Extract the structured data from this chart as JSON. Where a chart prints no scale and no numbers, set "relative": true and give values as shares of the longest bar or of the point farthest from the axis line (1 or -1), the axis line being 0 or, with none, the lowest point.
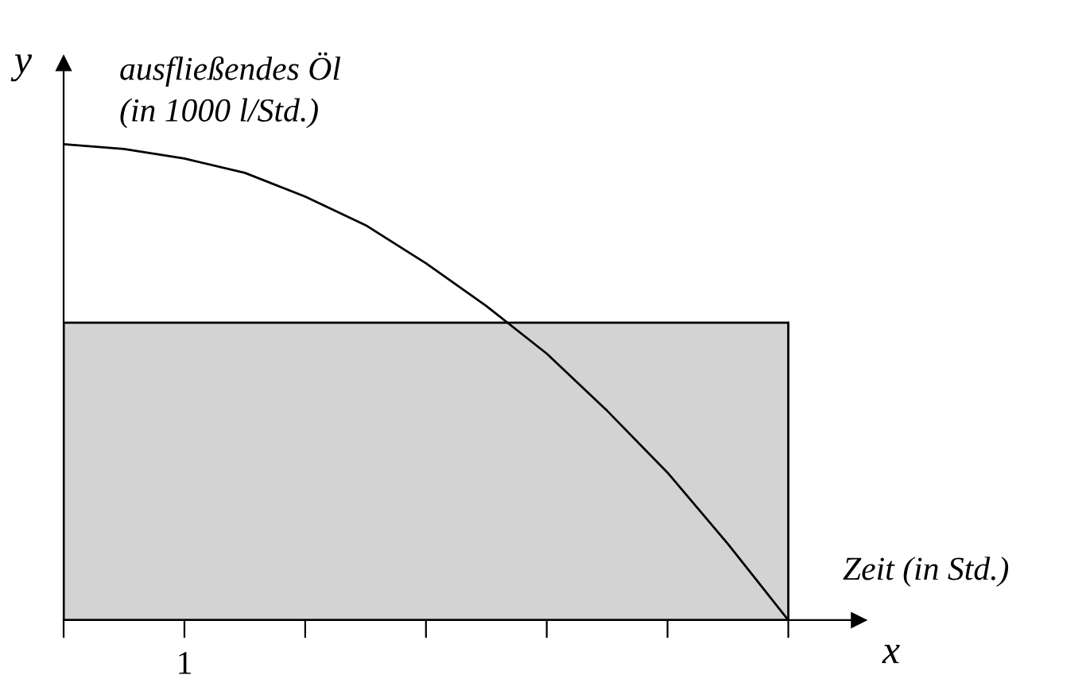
{
  "chart_data": {
    "type": "line",
    "relative": true,
    "xlabel": "x",
    "ylabel": "y",
    "annotations": [
      "ausfließendes Öl\n(in 1000 l/Std.)",
      "Zeit (in Std.)",
      "1"
    ],
    "categories": [
      null,
      null,
      null,
      null,
      null,
      null,
      null,
      null,
      null,
      null,
      null,
      null,
      null
    ],
    "bands": [
      {
        "axis": "y",
        "from": 0,
        "to": 0.625,
        "color": "#d3d3d3"
      }
    ],
    "series": [
      {
        "color": "#000000",
        "values": [
          1,
          0.99,
          0.97,
          0.94,
          0.89,
          0.83,
          0.75,
          0.66,
          0.56,
          0.44,
          0.31,
          0.16,
          0
        ]
      }
    ]
  }
}
